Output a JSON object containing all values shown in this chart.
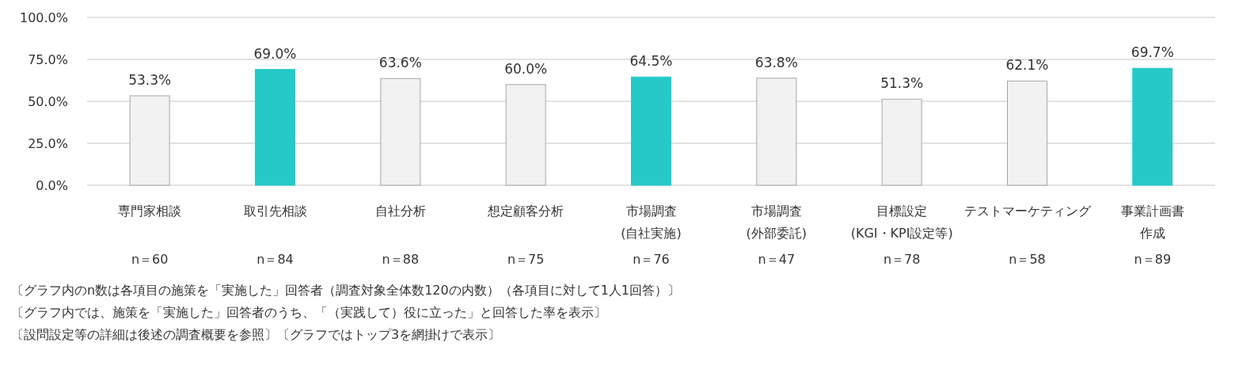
{
  "chart_data": {
    "type": "bar",
    "categories": [
      "専門家相談",
      "取引先相談",
      "自社分析",
      "想定顧客分析",
      "市場調査\n(自社実施)",
      "市場調査\n(外部委託)",
      "目標設定\n(KGI・KPI設定等)",
      "テストマーケティング",
      "事業計画書作成"
    ],
    "values": [
      53.3,
      69.0,
      63.6,
      60.0,
      64.5,
      63.8,
      51.3,
      62.1,
      69.7
    ],
    "colors": [
      "#f2f2f2",
      "#26c9c8",
      "#f2f2f2",
      "#f2f2f2",
      "#26c9c8",
      "#f2f2f2",
      "#f2f2f2",
      "#f2f2f2",
      "#26c9c8"
    ],
    "value_labels": [
      "53.3%",
      "69.0%",
      "63.6%",
      "60.0%",
      "64.5%",
      "63.8%",
      "51.3%",
      "62.1%",
      "69.7%"
    ],
    "ylim": [
      0,
      100
    ],
    "yticks": [
      {
        "value": 0,
        "label": "0.0%"
      },
      {
        "value": 25,
        "label": "25.0%"
      },
      {
        "value": 50,
        "label": "50.0%"
      },
      {
        "value": 75,
        "label": "75.0%"
      },
      {
        "value": 100,
        "label": "100.0%"
      }
    ],
    "grid": "y",
    "annotations": [
      "n＝60",
      "n＝84",
      "n＝88",
      "n＝75",
      "n＝76",
      "n＝47",
      "n＝78",
      "n＝58",
      "n＝89",
      "〔グラフ内のn数は各項目の施策を「実施した」回答者（調査対象全体数120の内数）（各項目に対して1人1回答）〕",
      "〔グラフ内では、施策を「実施した」回答者のうち、「（実践して）役に立った」と回答した率を表示〕",
      "〔設問設定等の詳細は後述の調査概要を参照〕〔グラフではトップ3を網掛けで表示〕"
    ]
  }
}
